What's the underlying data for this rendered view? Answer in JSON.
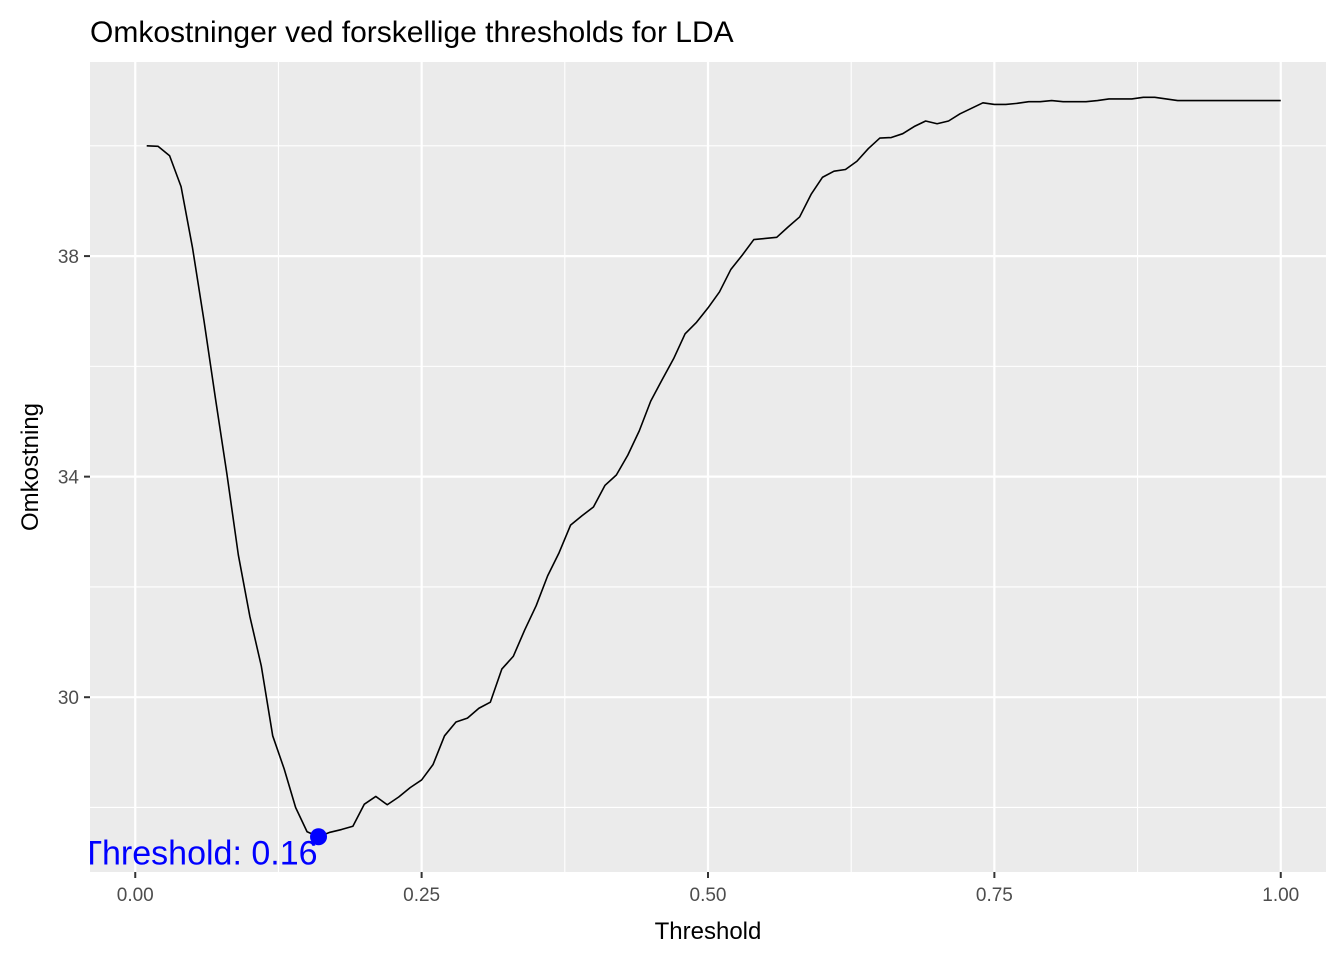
{
  "chart_data": {
    "type": "line",
    "title": "Omkostninger ved forskellige thresholds for LDA",
    "xlabel": "Threshold",
    "ylabel": "Omkostning",
    "xlim": [
      -0.0395,
      1.0395
    ],
    "ylim": [
      26.83,
      41.52
    ],
    "x_ticks": [
      0.0,
      0.25,
      0.5,
      0.75,
      1.0
    ],
    "x_tick_labels": [
      "0.00",
      "0.25",
      "0.50",
      "0.75",
      "1.00"
    ],
    "y_ticks": [
      30,
      34,
      38
    ],
    "y_tick_labels": [
      "30",
      "34",
      "38"
    ],
    "grid": true,
    "line_color": "#000000",
    "x": [
      0.01,
      0.02,
      0.03,
      0.04,
      0.05,
      0.06,
      0.07,
      0.08,
      0.09,
      0.1,
      0.11,
      0.12,
      0.13,
      0.14,
      0.15,
      0.16,
      0.17,
      0.18,
      0.19,
      0.2,
      0.21,
      0.22,
      0.23,
      0.24,
      0.25,
      0.26,
      0.27,
      0.28,
      0.29,
      0.3,
      0.31,
      0.32,
      0.33,
      0.34,
      0.35,
      0.36,
      0.37,
      0.38,
      0.39,
      0.4,
      0.41,
      0.42,
      0.43,
      0.44,
      0.45,
      0.46,
      0.47,
      0.48,
      0.49,
      0.5,
      0.51,
      0.52,
      0.53,
      0.54,
      0.55,
      0.56,
      0.57,
      0.58,
      0.59,
      0.6,
      0.61,
      0.62,
      0.63,
      0.64,
      0.65,
      0.66,
      0.67,
      0.68,
      0.69,
      0.7,
      0.71,
      0.72,
      0.73,
      0.74,
      0.75,
      0.76,
      0.77,
      0.78,
      0.79,
      0.8,
      0.81,
      0.82,
      0.83,
      0.84,
      0.85,
      0.86,
      0.87,
      0.88,
      0.89,
      0.9,
      0.91,
      0.92,
      0.93,
      0.94,
      0.95,
      0.96,
      0.97,
      0.98,
      0.99,
      1.0
    ],
    "y": [
      40.0,
      39.99,
      39.82,
      39.26,
      38.15,
      36.83,
      35.42,
      34.05,
      32.58,
      31.47,
      30.57,
      29.3,
      28.7,
      28.0,
      27.56,
      27.47,
      27.55,
      27.6,
      27.66,
      28.06,
      28.2,
      28.05,
      28.19,
      28.36,
      28.5,
      28.78,
      29.3,
      29.55,
      29.62,
      29.8,
      29.91,
      30.51,
      30.74,
      31.22,
      31.66,
      32.2,
      32.62,
      33.12,
      33.29,
      33.45,
      33.84,
      34.03,
      34.39,
      34.83,
      35.37,
      35.76,
      36.14,
      36.59,
      36.8,
      37.06,
      37.35,
      37.76,
      38.02,
      38.3,
      38.32,
      38.34,
      38.53,
      38.71,
      39.12,
      39.43,
      39.54,
      39.57,
      39.72,
      39.95,
      40.14,
      40.15,
      40.22,
      40.35,
      40.45,
      40.4,
      40.45,
      40.58,
      40.68,
      40.78,
      40.75,
      40.75,
      40.77,
      40.8,
      40.8,
      40.82,
      40.8,
      40.8,
      40.8,
      40.82,
      40.85,
      40.85,
      40.85,
      40.88,
      40.88,
      40.85,
      40.82,
      40.82,
      40.82,
      40.82,
      40.82,
      40.82,
      40.82,
      40.82,
      40.82,
      40.82
    ],
    "highlight": {
      "x": 0.16,
      "y": 27.47,
      "color": "#0000ff",
      "label": "Threshold: 0.16"
    }
  }
}
